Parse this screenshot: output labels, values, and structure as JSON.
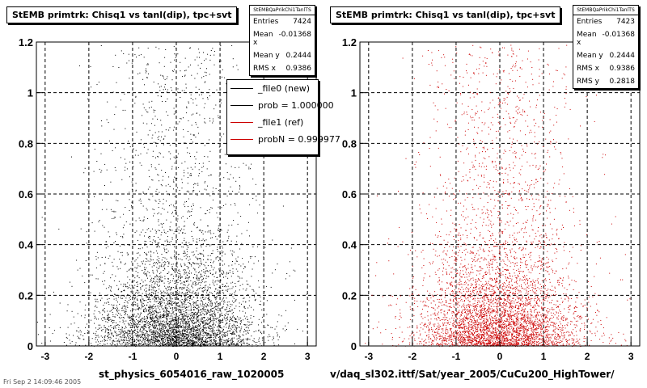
{
  "chart_data": [
    {
      "type": "scatter",
      "title": "StEMB primtrk: Chisq1 vs tanl(dip), tpc+svt",
      "xlabel": "st_physics_6054016_raw_1020005",
      "xlim": [
        -3.2,
        3.2
      ],
      "ylim": [
        0,
        1.2
      ],
      "xticks": [
        -3,
        -2,
        -1,
        0,
        1,
        2,
        3
      ],
      "yticks": [
        0,
        0.2,
        0.4,
        0.6,
        0.8,
        1,
        1.2
      ],
      "grid": true,
      "marker_color": "#000000",
      "stats": {
        "header": "StEMBQaPrikChi1TanlTS",
        "rows": [
          {
            "label": "Entries",
            "value": "7424"
          },
          {
            "label": "Mean x",
            "value": "-0.01368"
          },
          {
            "label": "Mean y",
            "value": "0.2444"
          },
          {
            "label": "RMS x",
            "value": "0.9386"
          }
        ]
      },
      "legend": [
        {
          "label": "_file0 (new)",
          "color": "#000000"
        },
        {
          "label": "prob = 1.000000",
          "color": "#000000"
        },
        {
          "label": "_file1 (ref)",
          "color": "#cc0000"
        },
        {
          "label": "probN = 0.999977",
          "color": "#cc0000"
        }
      ]
    },
    {
      "type": "scatter",
      "title": "StEMB primtrk: Chisq1 vs tanl(dip), tpc+svt",
      "xlabel": "v/daq_sl302.ittf/Sat/year_2005/CuCu200_HighTower/",
      "xlim": [
        -3.2,
        3.2
      ],
      "ylim": [
        0,
        1.2
      ],
      "xticks": [
        -3,
        -2,
        -1,
        0,
        1,
        2,
        3
      ],
      "yticks": [
        0,
        0.2,
        0.4,
        0.6,
        0.8,
        1,
        1.2
      ],
      "grid": true,
      "marker_color": "#cc0000",
      "stats": {
        "header": "StEMBQaPrikChi1TanlTS",
        "rows": [
          {
            "label": "Entries",
            "value": "7423"
          },
          {
            "label": "Mean x",
            "value": "-0.01368"
          },
          {
            "label": "Mean y",
            "value": "0.2444"
          },
          {
            "label": "RMS x",
            "value": "0.9386"
          },
          {
            "label": "RMS y",
            "value": "0.2818"
          }
        ]
      }
    }
  ],
  "footer": "Fri Sep 2 14:09:46 2005"
}
